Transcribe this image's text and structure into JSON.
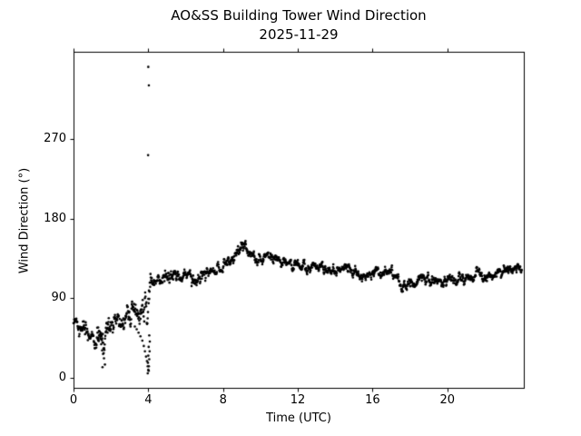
{
  "figure": {
    "title": "AO&SS Building Tower Wind Direction",
    "subtitle": "2025-11-29",
    "xlabel": "Time (UTC)",
    "ylabel": "Wind Direction (°)",
    "background_color": "#ffffff",
    "marker_color": "#000000",
    "axis_color": "#000000"
  },
  "chart_data": {
    "type": "scatter",
    "title": "AO&SS Building Tower Wind Direction",
    "subtitle": "2025-11-29",
    "xlabel": "Time (UTC)",
    "ylabel": "Wind Direction (°)",
    "xlim": [
      0,
      24.09
    ],
    "ylim": [
      -11.4,
      369.1
    ],
    "x_ticks": [
      0,
      4,
      8,
      12,
      16,
      20
    ],
    "y_ticks": [
      0,
      90,
      180,
      270
    ],
    "grid": false,
    "legend": null,
    "marker": "dot",
    "n_points": 1440,
    "sampling_minutes": 1,
    "trend_anchors_hour_mean_spread": [
      [
        0.0,
        65,
        6
      ],
      [
        0.3,
        58,
        6
      ],
      [
        0.7,
        50,
        6
      ],
      [
        1.0,
        48,
        6
      ],
      [
        1.3,
        47,
        7
      ],
      [
        1.6,
        50,
        9
      ],
      [
        1.9,
        55,
        9
      ],
      [
        2.2,
        62,
        9
      ],
      [
        2.5,
        62,
        8
      ],
      [
        2.8,
        64,
        9
      ],
      [
        3.1,
        69,
        10
      ],
      [
        3.4,
        72,
        12
      ],
      [
        3.7,
        76,
        14
      ],
      [
        3.85,
        78,
        15
      ],
      [
        4.0,
        85,
        18
      ],
      [
        4.15,
        103,
        8
      ],
      [
        4.4,
        108,
        6
      ],
      [
        4.7,
        111,
        6
      ],
      [
        5.0,
        113,
        6
      ],
      [
        5.5,
        116,
        5
      ],
      [
        6.0,
        115,
        5
      ],
      [
        6.4,
        110,
        5
      ],
      [
        6.8,
        113,
        5
      ],
      [
        7.2,
        118,
        5
      ],
      [
        7.6,
        121,
        5
      ],
      [
        8.0,
        126,
        5
      ],
      [
        8.4,
        131,
        5
      ],
      [
        8.7,
        141,
        6
      ],
      [
        9.0,
        152,
        5
      ],
      [
        9.2,
        149,
        5
      ],
      [
        9.45,
        139,
        5
      ],
      [
        9.7,
        134,
        4
      ],
      [
        10.0,
        131,
        4
      ],
      [
        10.3,
        136,
        4
      ],
      [
        10.6,
        133,
        4
      ],
      [
        11.0,
        133,
        4
      ],
      [
        11.5,
        129,
        4
      ],
      [
        12.0,
        127,
        4
      ],
      [
        12.5,
        125,
        4
      ],
      [
        13.0,
        125,
        4
      ],
      [
        13.5,
        123,
        4
      ],
      [
        14.0,
        123,
        4
      ],
      [
        14.5,
        124,
        4
      ],
      [
        15.0,
        121,
        4
      ],
      [
        15.5,
        117,
        4
      ],
      [
        16.0,
        119,
        4
      ],
      [
        16.5,
        122,
        4
      ],
      [
        17.0,
        119,
        4
      ],
      [
        17.4,
        112,
        5
      ],
      [
        17.8,
        105,
        5
      ],
      [
        18.2,
        108,
        4
      ],
      [
        18.6,
        112,
        4
      ],
      [
        19.0,
        113,
        4
      ],
      [
        19.5,
        111,
        4
      ],
      [
        20.0,
        112,
        4
      ],
      [
        20.5,
        114,
        4
      ],
      [
        21.0,
        112,
        4
      ],
      [
        21.5,
        114,
        4
      ],
      [
        22.0,
        116,
        4
      ],
      [
        22.5,
        118,
        4
      ],
      [
        23.0,
        121,
        4
      ],
      [
        23.5,
        124,
        4
      ],
      [
        23.983,
        126,
        4
      ]
    ],
    "outlier_points_hour_degrees": [
      [
        3.99,
        252
      ],
      [
        4.0,
        352
      ],
      [
        4.03,
        331
      ],
      [
        3.97,
        5
      ],
      [
        4.0,
        9
      ],
      [
        4.03,
        13
      ],
      [
        3.98,
        17
      ],
      [
        4.05,
        21
      ],
      [
        4.0,
        25
      ],
      [
        4.07,
        30
      ],
      [
        4.02,
        35
      ],
      [
        4.08,
        41
      ],
      [
        4.05,
        48
      ],
      [
        1.32,
        57
      ],
      [
        1.36,
        53
      ],
      [
        1.4,
        49
      ],
      [
        1.44,
        44
      ],
      [
        1.48,
        38
      ],
      [
        1.53,
        31
      ],
      [
        1.58,
        27
      ],
      [
        1.63,
        22
      ],
      [
        1.68,
        15
      ],
      [
        1.55,
        12
      ],
      [
        3.28,
        58
      ],
      [
        3.38,
        55
      ],
      [
        3.48,
        51
      ],
      [
        3.58,
        47
      ],
      [
        3.68,
        42
      ],
      [
        3.76,
        36
      ],
      [
        3.82,
        30
      ],
      [
        3.88,
        24
      ],
      [
        3.93,
        19
      ],
      [
        3.97,
        13
      ],
      [
        4.02,
        8
      ]
    ]
  }
}
